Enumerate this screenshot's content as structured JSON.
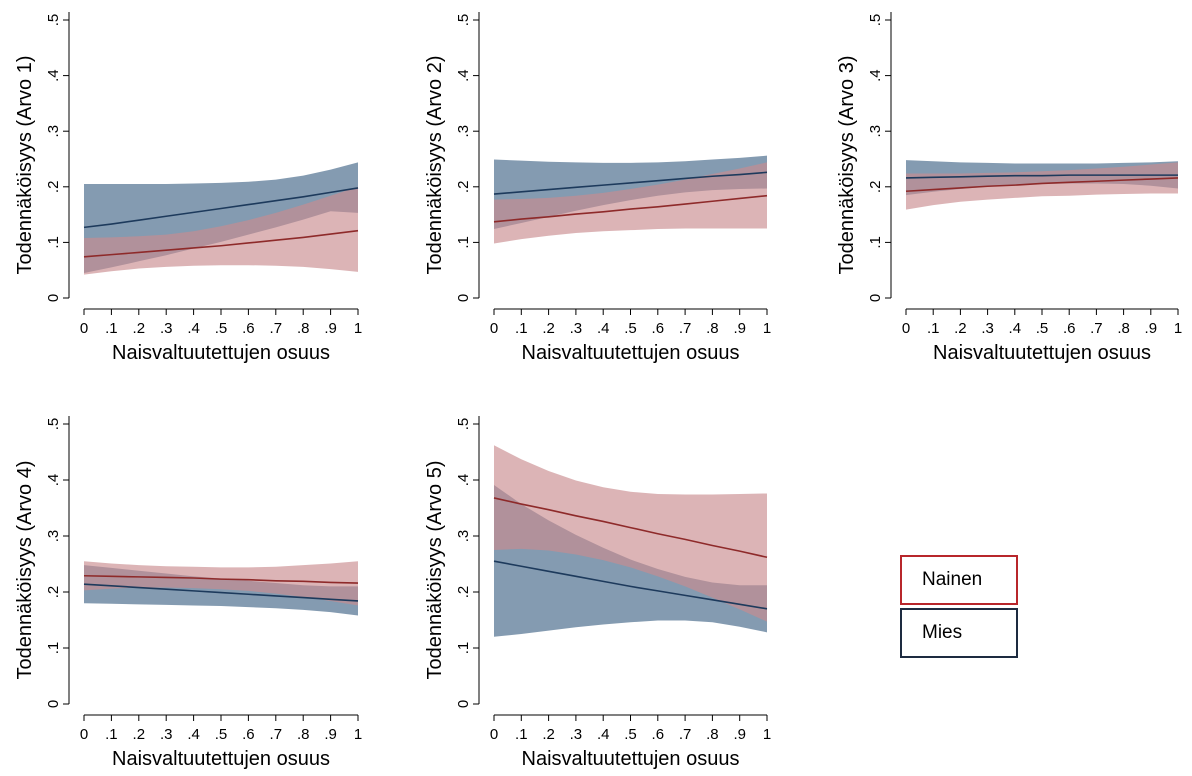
{
  "colors": {
    "nainen_line": "#8e2a2a",
    "nainen_band": "#c98c8f",
    "mies_line": "#1d3a5c",
    "mies_band": "#6f8aa3"
  },
  "legend": [
    {
      "label": "Nainen",
      "color": "#b8262b"
    },
    {
      "label": "Mies",
      "color": "#1d2b40"
    }
  ],
  "chart_data": [
    {
      "type": "area",
      "ylabel": "Todennäköisyys (Arvo 1)",
      "xlabel": "Naisvaltuutettujen osuus",
      "x_ticks": [
        "0",
        ".1",
        ".2",
        ".3",
        ".4",
        ".5",
        ".6",
        ".7",
        ".8",
        ".9",
        "1"
      ],
      "y_ticks": [
        "0",
        ".1",
        ".2",
        ".3",
        ".4",
        ".5"
      ],
      "xlim": [
        0,
        1
      ],
      "ylim": [
        0,
        0.5
      ],
      "x": [
        0,
        0.1,
        0.2,
        0.3,
        0.4,
        0.5,
        0.6,
        0.7,
        0.8,
        0.9,
        1
      ],
      "series": [
        {
          "name": "Mies",
          "values": [
            0.127,
            0.133,
            0.14,
            0.147,
            0.154,
            0.161,
            0.168,
            0.175,
            0.182,
            0.19,
            0.198
          ],
          "lower": [
            0.045,
            0.055,
            0.066,
            0.077,
            0.089,
            0.101,
            0.114,
            0.127,
            0.141,
            0.156,
            0.153
          ],
          "upper": [
            0.205,
            0.205,
            0.205,
            0.205,
            0.206,
            0.207,
            0.209,
            0.213,
            0.22,
            0.231,
            0.244
          ]
        },
        {
          "name": "Nainen",
          "values": [
            0.074,
            0.078,
            0.082,
            0.086,
            0.09,
            0.094,
            0.099,
            0.104,
            0.109,
            0.115,
            0.121
          ],
          "lower": [
            0.042,
            0.048,
            0.053,
            0.056,
            0.058,
            0.059,
            0.059,
            0.058,
            0.056,
            0.052,
            0.047
          ],
          "upper": [
            0.108,
            0.109,
            0.111,
            0.114,
            0.12,
            0.129,
            0.14,
            0.153,
            0.168,
            0.184,
            0.2
          ]
        }
      ]
    },
    {
      "type": "area",
      "ylabel": "Todennäköisyys (Arvo 2)",
      "xlabel": "Naisvaltuutettujen osuus",
      "x_ticks": [
        "0",
        ".1",
        ".2",
        ".3",
        ".4",
        ".5",
        ".6",
        ".7",
        ".8",
        ".9",
        "1"
      ],
      "y_ticks": [
        "0",
        ".1",
        ".2",
        ".3",
        ".4",
        ".5"
      ],
      "xlim": [
        0,
        1
      ],
      "ylim": [
        0,
        0.5
      ],
      "x": [
        0,
        0.1,
        0.2,
        0.3,
        0.4,
        0.5,
        0.6,
        0.7,
        0.8,
        0.9,
        1
      ],
      "series": [
        {
          "name": "Mies",
          "values": [
            0.187,
            0.191,
            0.195,
            0.199,
            0.203,
            0.207,
            0.211,
            0.215,
            0.219,
            0.222,
            0.226
          ],
          "lower": [
            0.124,
            0.135,
            0.146,
            0.157,
            0.167,
            0.176,
            0.184,
            0.19,
            0.194,
            0.196,
            0.197
          ],
          "upper": [
            0.249,
            0.247,
            0.245,
            0.244,
            0.243,
            0.243,
            0.244,
            0.246,
            0.249,
            0.252,
            0.256
          ]
        },
        {
          "name": "Nainen",
          "values": [
            0.137,
            0.142,
            0.146,
            0.151,
            0.155,
            0.16,
            0.164,
            0.169,
            0.174,
            0.179,
            0.184
          ],
          "lower": [
            0.098,
            0.106,
            0.112,
            0.117,
            0.12,
            0.122,
            0.124,
            0.125,
            0.125,
            0.125,
            0.125
          ],
          "upper": [
            0.177,
            0.178,
            0.18,
            0.184,
            0.189,
            0.196,
            0.204,
            0.213,
            0.223,
            0.233,
            0.244
          ]
        }
      ]
    },
    {
      "type": "area",
      "ylabel": "Todennäköisyys (Arvo 3)",
      "xlabel": "Naisvaltuutettujen osuus",
      "x_ticks": [
        "0",
        ".1",
        ".2",
        ".3",
        ".4",
        ".5",
        ".6",
        ".7",
        ".8",
        ".9",
        "1"
      ],
      "y_ticks": [
        "0",
        ".1",
        ".2",
        ".3",
        ".4",
        ".5"
      ],
      "xlim": [
        0,
        1
      ],
      "ylim": [
        0,
        0.5
      ],
      "x": [
        0,
        0.1,
        0.2,
        0.3,
        0.4,
        0.5,
        0.6,
        0.7,
        0.8,
        0.9,
        1
      ],
      "series": [
        {
          "name": "Mies",
          "values": [
            0.216,
            0.217,
            0.218,
            0.219,
            0.22,
            0.22,
            0.221,
            0.221,
            0.221,
            0.221,
            0.221
          ],
          "lower": [
            0.185,
            0.191,
            0.196,
            0.2,
            0.203,
            0.205,
            0.206,
            0.206,
            0.205,
            0.202,
            0.197
          ],
          "upper": [
            0.248,
            0.246,
            0.244,
            0.243,
            0.242,
            0.242,
            0.242,
            0.242,
            0.243,
            0.244,
            0.246
          ]
        },
        {
          "name": "Nainen",
          "values": [
            0.192,
            0.195,
            0.198,
            0.201,
            0.203,
            0.206,
            0.208,
            0.21,
            0.212,
            0.214,
            0.216
          ],
          "lower": [
            0.159,
            0.167,
            0.173,
            0.177,
            0.18,
            0.183,
            0.184,
            0.186,
            0.187,
            0.188,
            0.188
          ],
          "upper": [
            0.224,
            0.224,
            0.224,
            0.225,
            0.226,
            0.228,
            0.23,
            0.233,
            0.236,
            0.24,
            0.244
          ]
        }
      ]
    },
    {
      "type": "area",
      "ylabel": "Todennäköisyys (Arvo 4)",
      "xlabel": "Naisvaltuutettujen osuus",
      "x_ticks": [
        "0",
        ".1",
        ".2",
        ".3",
        ".4",
        ".5",
        ".6",
        ".7",
        ".8",
        ".9",
        "1"
      ],
      "y_ticks": [
        "0",
        ".1",
        ".2",
        ".3",
        ".4",
        ".5"
      ],
      "xlim": [
        0,
        1
      ],
      "ylim": [
        0,
        0.5
      ],
      "x": [
        0,
        0.1,
        0.2,
        0.3,
        0.4,
        0.5,
        0.6,
        0.7,
        0.8,
        0.9,
        1
      ],
      "series": [
        {
          "name": "Mies",
          "values": [
            0.214,
            0.211,
            0.208,
            0.205,
            0.202,
            0.199,
            0.196,
            0.193,
            0.19,
            0.187,
            0.184
          ],
          "lower": [
            0.18,
            0.179,
            0.178,
            0.177,
            0.176,
            0.175,
            0.173,
            0.171,
            0.168,
            0.164,
            0.158
          ],
          "upper": [
            0.248,
            0.243,
            0.238,
            0.233,
            0.228,
            0.224,
            0.22,
            0.216,
            0.212,
            0.21,
            0.21
          ]
        },
        {
          "name": "Nainen",
          "values": [
            0.229,
            0.228,
            0.227,
            0.226,
            0.225,
            0.223,
            0.222,
            0.22,
            0.219,
            0.217,
            0.216
          ],
          "lower": [
            0.203,
            0.206,
            0.208,
            0.208,
            0.207,
            0.205,
            0.202,
            0.197,
            0.191,
            0.184,
            0.176
          ],
          "upper": [
            0.255,
            0.251,
            0.248,
            0.246,
            0.245,
            0.244,
            0.244,
            0.245,
            0.248,
            0.251,
            0.255
          ]
        }
      ]
    },
    {
      "type": "area",
      "ylabel": "Todennäköisyys (Arvo 5)",
      "xlabel": "Naisvaltuutettujen osuus",
      "x_ticks": [
        "0",
        ".1",
        ".2",
        ".3",
        ".4",
        ".5",
        ".6",
        ".7",
        ".8",
        ".9",
        "1"
      ],
      "y_ticks": [
        "0",
        ".1",
        ".2",
        ".3",
        ".4",
        ".5"
      ],
      "xlim": [
        0,
        1
      ],
      "ylim": [
        0,
        0.5
      ],
      "x": [
        0,
        0.1,
        0.2,
        0.3,
        0.4,
        0.5,
        0.6,
        0.7,
        0.8,
        0.9,
        1
      ],
      "series": [
        {
          "name": "Mies",
          "values": [
            0.255,
            0.246,
            0.237,
            0.228,
            0.219,
            0.21,
            0.202,
            0.194,
            0.186,
            0.178,
            0.17
          ],
          "lower": [
            0.12,
            0.125,
            0.131,
            0.137,
            0.142,
            0.146,
            0.149,
            0.149,
            0.146,
            0.138,
            0.128
          ],
          "upper": [
            0.391,
            0.357,
            0.328,
            0.302,
            0.279,
            0.258,
            0.241,
            0.227,
            0.217,
            0.212,
            0.212
          ]
        },
        {
          "name": "Nainen",
          "values": [
            0.368,
            0.357,
            0.347,
            0.336,
            0.326,
            0.315,
            0.304,
            0.294,
            0.283,
            0.273,
            0.262
          ],
          "lower": [
            0.275,
            0.277,
            0.274,
            0.267,
            0.257,
            0.244,
            0.228,
            0.21,
            0.19,
            0.169,
            0.147
          ],
          "upper": [
            0.462,
            0.437,
            0.416,
            0.399,
            0.387,
            0.379,
            0.375,
            0.374,
            0.374,
            0.375,
            0.376
          ]
        }
      ]
    }
  ]
}
